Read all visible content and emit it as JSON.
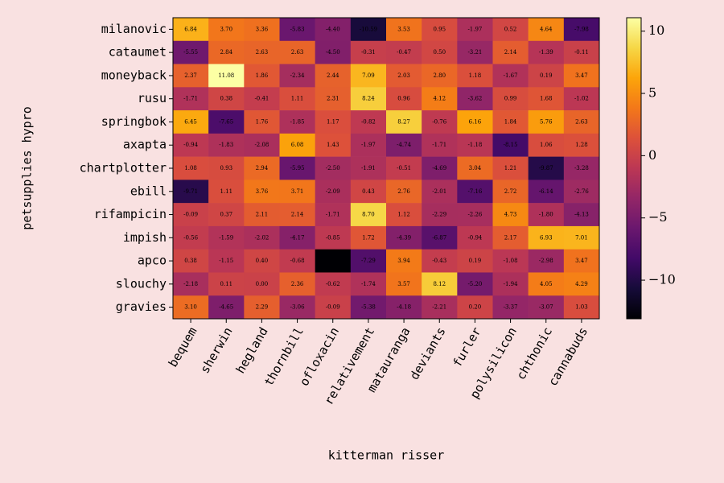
{
  "chart_data": {
    "type": "heatmap",
    "xlabel": "kitterman risser",
    "ylabel": "petsupplies hypro",
    "x_categories": [
      "bequem",
      "sherwin",
      "hegland",
      "thornbill",
      "ofloxacin",
      "relativement",
      "matauranga",
      "deviants",
      "furler",
      "polysilicon",
      "chthonic",
      "cannabuds"
    ],
    "y_categories": [
      "milanovic",
      "cataumet",
      "moneyback",
      "rusu",
      "springbok",
      "axapta",
      "chartplotter",
      "ebill",
      "rifampicin",
      "impish",
      "apco",
      "slouchy",
      "gravies"
    ],
    "values": [
      [
        6.84,
        3.7,
        3.36,
        -5.83,
        -4.4,
        -10.59,
        3.53,
        0.95,
        -1.97,
        0.52,
        4.64,
        -7.98
      ],
      [
        -5.55,
        2.84,
        2.63,
        2.63,
        -4.5,
        -0.31,
        -0.47,
        0.5,
        -3.21,
        2.14,
        -1.39,
        -0.11
      ],
      [
        2.37,
        11.08,
        1.86,
        -2.34,
        2.44,
        7.09,
        2.03,
        2.8,
        1.18,
        -1.67,
        0.19,
        3.47
      ],
      [
        -1.71,
        0.38,
        -0.41,
        1.11,
        2.31,
        8.24,
        0.96,
        4.12,
        -3.62,
        0.99,
        1.68,
        -1.02
      ],
      [
        6.45,
        -7.65,
        1.76,
        -1.85,
        1.17,
        -0.82,
        8.27,
        -0.76,
        6.16,
        1.84,
        5.76,
        2.63
      ],
      [
        -0.94,
        -1.83,
        -2.08,
        6.08,
        1.43,
        -1.97,
        -4.74,
        -1.71,
        -1.18,
        -8.15,
        1.06,
        1.28
      ],
      [
        1.08,
        0.93,
        2.94,
        -5.95,
        -2.5,
        -1.91,
        -0.51,
        -4.69,
        3.04,
        1.21,
        -9.87,
        -3.28
      ],
      [
        -9.71,
        1.11,
        3.76,
        3.71,
        -2.09,
        0.43,
        2.76,
        -2.01,
        -7.16,
        2.72,
        -6.14,
        -2.76
      ],
      [
        -0.09,
        0.37,
        2.11,
        2.14,
        -1.71,
        8.7,
        1.12,
        -2.29,
        -2.26,
        4.73,
        -1.8,
        -4.13
      ],
      [
        -0.56,
        -1.59,
        -2.02,
        -4.17,
        -0.85,
        1.72,
        -4.39,
        -6.87,
        -0.94,
        2.17,
        6.93,
        7.01
      ],
      [
        0.38,
        -1.15,
        0.4,
        -0.68,
        -13.1,
        -7.29,
        3.94,
        -0.43,
        0.19,
        -1.08,
        -2.98,
        3.47
      ],
      [
        -2.18,
        0.11,
        0.0,
        2.36,
        -0.62,
        -1.74,
        3.57,
        8.12,
        -5.2,
        -1.94,
        4.05,
        4.29
      ],
      [
        3.1,
        -4.65,
        2.29,
        -3.06,
        -0.09,
        -5.38,
        -4.18,
        -2.21,
        0.2,
        -3.37,
        -3.07,
        1.03
      ]
    ],
    "value_labels": [
      [
        "6.84",
        "3.70",
        "3.36",
        "-5.83",
        "-4.40",
        "-10.59",
        "3.53",
        "0.95",
        "-1.97",
        "0.52",
        "4.64",
        "-7.98"
      ],
      [
        "-5.55",
        "2.84",
        "2.63",
        "2.63",
        "-4.50",
        "-0.31",
        "-0.47",
        "0.50",
        "-3.21",
        "2.14",
        "-1.39",
        "-0.11"
      ],
      [
        "2.37",
        "11.08",
        "1.86",
        "-2.34",
        "2.44",
        "7.09",
        "2.03",
        "2.80",
        "1.18",
        "-1.67",
        "0.19",
        "3.47"
      ],
      [
        "-1.71",
        "0.38",
        "-0.41",
        "1.11",
        "2.31",
        "8.24",
        "0.96",
        "4.12",
        "-3.62",
        "0.99",
        "1.68",
        "-1.02"
      ],
      [
        "6.45",
        "-7.65",
        "1.76",
        "-1.85",
        "1.17",
        "-0.82",
        "8.27",
        "-0.76",
        "6.16",
        "1.84",
        "5.76",
        "2.63"
      ],
      [
        "-0.94",
        "-1.83",
        "-2.08",
        "6.08",
        "1.43",
        "-1.97",
        "-4.74",
        "-1.71",
        "-1.18",
        "-8.15",
        "1.06",
        "1.28"
      ],
      [
        "1.08",
        "0.93",
        "2.94",
        "-5.95",
        "-2.50",
        "-1.91",
        "-0.51",
        "-4.69",
        "3.04",
        "1.21",
        "-9.87",
        "-3.28"
      ],
      [
        "-9.71",
        "1.11",
        "3.76",
        "3.71",
        "-2.09",
        "0.43",
        "2.76",
        "-2.01",
        "-7.16",
        "2.72",
        "-6.14",
        "-2.76"
      ],
      [
        "-0.09",
        "0.37",
        "2.11",
        "2.14",
        "-1.71",
        "8.70",
        "1.12",
        "-2.29",
        "-2.26",
        "4.73",
        "-1.80",
        "-4.13"
      ],
      [
        "-0.56",
        "-1.59",
        "-2.02",
        "-4.17",
        "-0.85",
        "1.72",
        "-4.39",
        "-6.87",
        "-0.94",
        "2.17",
        "6.93",
        "7.01"
      ],
      [
        "0.38",
        "-1.15",
        "0.40",
        "-0.68",
        null,
        "-7.29",
        "3.94",
        "-0.43",
        "0.19",
        "-1.08",
        "-2.98",
        "3.47"
      ],
      [
        "-2.18",
        "0.11",
        "0.00",
        "2.36",
        "-0.62",
        "-1.74",
        "3.57",
        "8.12",
        "-5.20",
        "-1.94",
        "4.05",
        "4.29"
      ],
      [
        "3.10",
        "-4.65",
        "2.29",
        "-3.06",
        "-0.09",
        "-5.38",
        "-4.18",
        "-2.21",
        "0.20",
        "-3.37",
        "-3.07",
        "1.03"
      ]
    ],
    "colormap": "inferno",
    "clim": [
      -13.1,
      11.08
    ],
    "colorbar_ticks": [
      {
        "value": -10,
        "label": "−10"
      },
      {
        "value": -5,
        "label": "−5"
      },
      0,
      5,
      10
    ]
  }
}
